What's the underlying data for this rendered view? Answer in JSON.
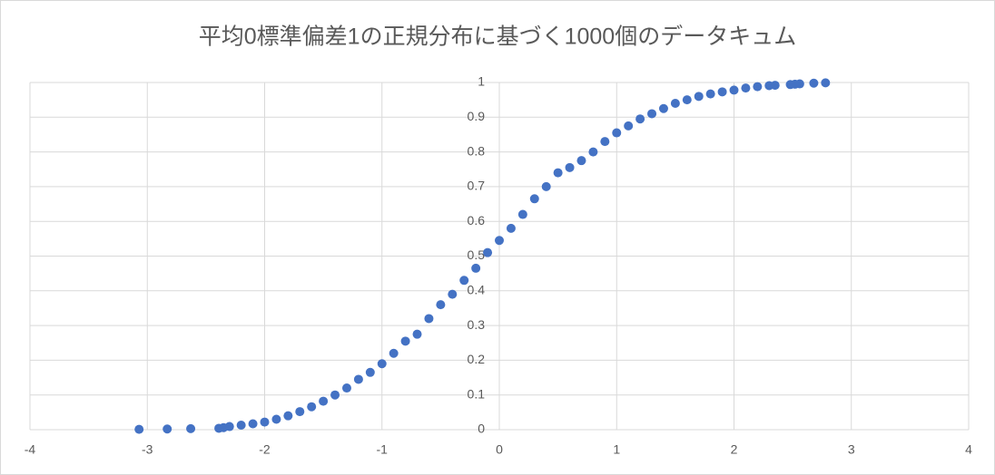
{
  "chart_data": {
    "type": "scatter",
    "title": "平均0標準偏差1の正規分布に基づく1000個のデータキュム",
    "series": [
      {
        "color": "#4472c4",
        "x": [
          -3.07,
          -2.83,
          -2.63,
          -2.39,
          -2.35,
          -2.3,
          -2.2,
          -2.1,
          -2.0,
          -1.9,
          -1.8,
          -1.7,
          -1.6,
          -1.5,
          -1.4,
          -1.3,
          -1.2,
          -1.1,
          -1.0,
          -0.9,
          -0.8,
          -0.7,
          -0.6,
          -0.5,
          -0.4,
          -0.3,
          -0.2,
          -0.1,
          0,
          0.1,
          0.2,
          0.3,
          0.4,
          0.5,
          0.6,
          0.7,
          0.8,
          0.9,
          1.0,
          1.1,
          1.2,
          1.3,
          1.4,
          1.5,
          1.6,
          1.7,
          1.8,
          1.9,
          2.0,
          2.1,
          2.2,
          2.3,
          2.35,
          2.48,
          2.52,
          2.56,
          2.68,
          2.78
        ],
        "values": [
          0.001,
          0.002,
          0.003,
          0.004,
          0.006,
          0.009,
          0.013,
          0.017,
          0.022,
          0.03,
          0.04,
          0.052,
          0.066,
          0.082,
          0.1,
          0.12,
          0.145,
          0.165,
          0.19,
          0.22,
          0.255,
          0.275,
          0.32,
          0.36,
          0.39,
          0.43,
          0.465,
          0.51,
          0.545,
          0.58,
          0.62,
          0.665,
          0.7,
          0.74,
          0.755,
          0.775,
          0.8,
          0.83,
          0.855,
          0.875,
          0.895,
          0.91,
          0.925,
          0.94,
          0.95,
          0.96,
          0.967,
          0.973,
          0.978,
          0.984,
          0.988,
          0.991,
          0.992,
          0.994,
          0.995,
          0.996,
          0.998,
          0.999
        ]
      }
    ],
    "xlim": [
      -4,
      4
    ],
    "xticks": [
      -4,
      -3,
      -2,
      -1,
      0,
      1,
      2,
      3,
      4
    ],
    "ylim": [
      0,
      1
    ],
    "yticks": [
      0,
      0.1,
      0.2,
      0.3,
      0.4,
      0.5,
      0.6,
      0.7,
      0.8,
      0.9,
      1
    ],
    "grid": true
  }
}
